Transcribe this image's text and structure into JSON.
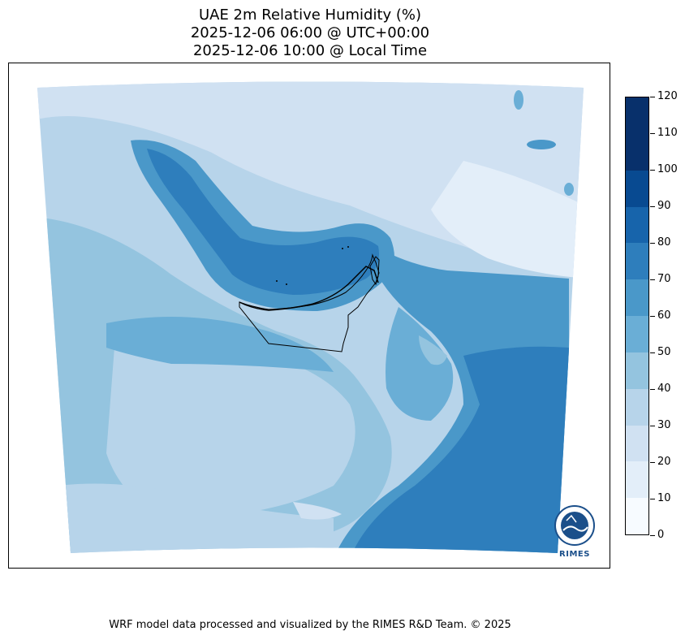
{
  "title": {
    "line1": "UAE 2m Relative Humidity (%)",
    "line2": "2025-12-06 06:00 @ UTC+00:00",
    "line3": "2025-12-06 10:00 @ Local Time"
  },
  "colorbar": {
    "ticks": [
      "0",
      "10",
      "20",
      "30",
      "40",
      "50",
      "60",
      "70",
      "80",
      "90",
      "100",
      "110",
      "120"
    ],
    "colors": [
      "#f7fbff",
      "#e3eef9",
      "#d0e1f2",
      "#b7d4ea",
      "#94c4df",
      "#6aaed6",
      "#4a98c9",
      "#2e7ebc",
      "#1764ab",
      "#084a91",
      "#08306b",
      "#08306b"
    ]
  },
  "map": {
    "colors": {
      "very_light": "#d0e1f2",
      "light": "#b7d4ea",
      "medium_light": "#94c4df",
      "medium": "#6aaed6",
      "medium_dark": "#4a98c9",
      "dark": "#2e7ebc",
      "border": "#000000"
    }
  },
  "logo": {
    "text": "RIMES"
  },
  "footer": "WRF model data processed and visualized by the RIMES R&D Team. © 2025"
}
